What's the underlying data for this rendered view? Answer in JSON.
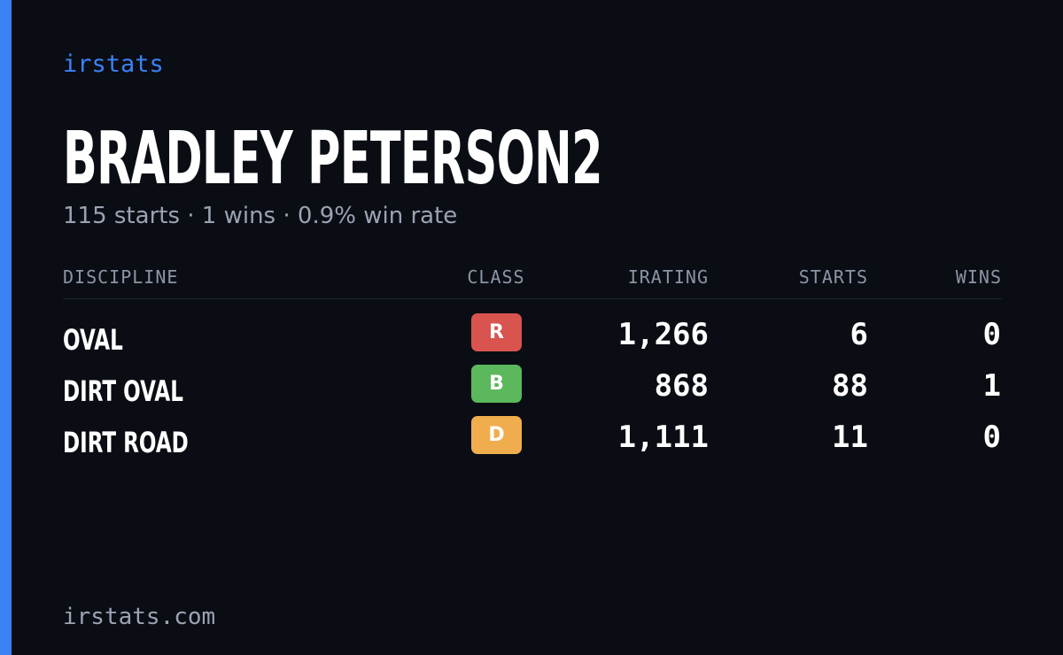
{
  "brand": "irstats",
  "driver": {
    "name": "BRADLEY PETERSON2",
    "summary": "115 starts · 1 wins · 0.9% win rate"
  },
  "table": {
    "headers": {
      "discipline": "DISCIPLINE",
      "class": "CLASS",
      "irating": "IRATING",
      "starts": "STARTS",
      "wins": "WINS"
    },
    "rows": [
      {
        "discipline": "OVAL",
        "class": "R",
        "class_color": "#d9534f",
        "irating": "1,266",
        "starts": "6",
        "wins": "0"
      },
      {
        "discipline": "DIRT OVAL",
        "class": "B",
        "class_color": "#5cb85c",
        "irating": "868",
        "starts": "88",
        "wins": "1"
      },
      {
        "discipline": "DIRT ROAD",
        "class": "D",
        "class_color": "#f0ad4e",
        "irating": "1,111",
        "starts": "11",
        "wins": "0"
      }
    ]
  },
  "footer": "irstats.com",
  "colors": {
    "accent": "#3b82f6",
    "background": "#0a0d14"
  }
}
